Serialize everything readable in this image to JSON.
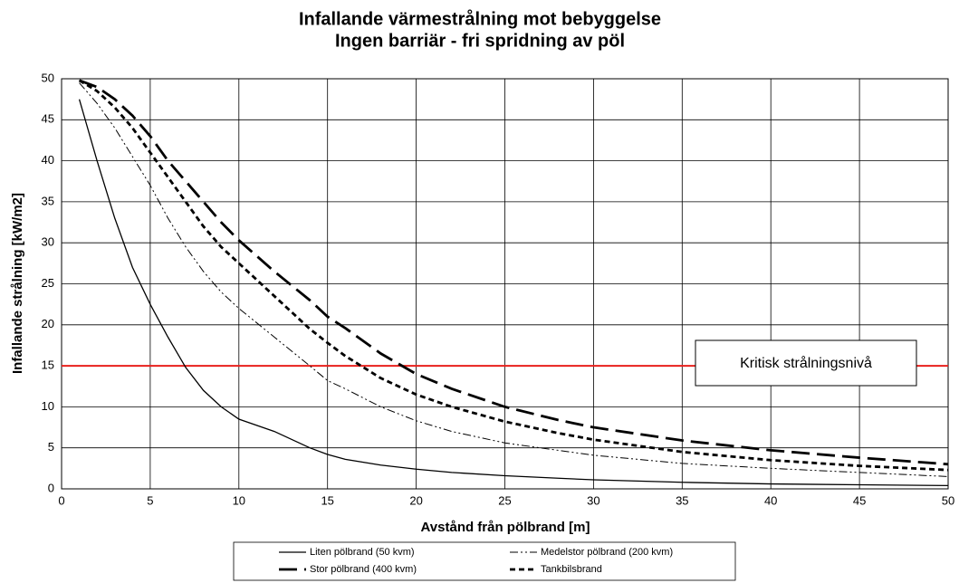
{
  "chart_data": {
    "type": "line",
    "title": [
      "Infallande värmestrålning mot bebyggelse",
      "Ingen barriär - fri spridning av pöl"
    ],
    "x_label": "Avstånd från pölbrand [m]",
    "y_label": "Infallande strålning [kW/m2]",
    "x": [
      1,
      2,
      3,
      4,
      5,
      6,
      7,
      8,
      9,
      10,
      12,
      14,
      15,
      16,
      18,
      20,
      22,
      25,
      28,
      30,
      35,
      40,
      45,
      50
    ],
    "series": [
      {
        "name": "Liten pölbrand (50 kvm)",
        "color": "#000000",
        "style": "solid",
        "values": [
          47.5,
          40,
          33,
          27,
          22.5,
          18.5,
          14.8,
          12,
          10,
          8.5,
          7,
          5,
          4.2,
          3.6,
          2.9,
          2.4,
          2,
          1.6,
          1.3,
          1.1,
          0.8,
          0.6,
          0.5,
          0.4
        ]
      },
      {
        "name": "Medelstor pölbrand (200 kvm)",
        "color": "#000000",
        "style": "dash-dot-dot",
        "values": [
          49.5,
          47,
          44,
          40.5,
          37,
          33,
          29.5,
          26.5,
          24,
          22,
          18.5,
          15,
          13.2,
          12.2,
          10,
          8.3,
          7,
          5.6,
          4.7,
          4.1,
          3.1,
          2.5,
          2,
          1.5
        ]
      },
      {
        "name": "Stor pölbrand (400 kvm)",
        "color": "#000000",
        "style": "long-dash",
        "values": [
          49.8,
          49,
          47.5,
          45.5,
          43,
          40,
          37.5,
          35,
          32.5,
          30.3,
          26.5,
          23,
          21,
          19.6,
          16.5,
          14,
          12.2,
          10,
          8.4,
          7.5,
          5.9,
          4.7,
          3.8,
          3
        ]
      },
      {
        "name": "Tankbilsbrand",
        "color": "#000000",
        "style": "short-dash",
        "values": [
          49.8,
          48.5,
          46.5,
          44,
          41,
          38,
          35,
          32,
          29.5,
          27.5,
          23.5,
          19.5,
          17.8,
          16.2,
          13.5,
          11.5,
          10,
          8.2,
          6.8,
          6,
          4.5,
          3.5,
          2.8,
          2.3
        ]
      }
    ],
    "threshold": {
      "value": 15,
      "label": "Kritisk strålningsnivå",
      "color": "#e8201c"
    },
    "xlim": [
      0,
      50
    ],
    "ylim": [
      0,
      50
    ],
    "xticks": [
      0,
      5,
      10,
      15,
      20,
      25,
      30,
      35,
      40,
      45,
      50
    ],
    "yticks": [
      0,
      5,
      10,
      15,
      20,
      25,
      30,
      35,
      40,
      45,
      50
    ],
    "grid": true,
    "legend": "bottom"
  }
}
